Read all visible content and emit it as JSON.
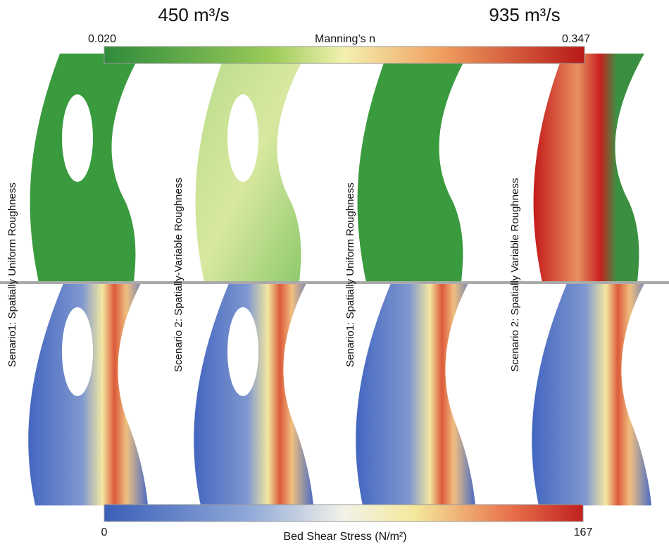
{
  "header": {
    "left_title": "450 m³/s",
    "right_title": "935 m³/s"
  },
  "manning_colorbar": {
    "min_label": "0.020",
    "max_label": "0.347",
    "title": "Manning’s n"
  },
  "shear_colorbar": {
    "min_label": "0",
    "max_label": "167",
    "title": "Bed Shear Stress (N/m²)"
  },
  "panels": [
    {
      "label": "Senario1: Spatially Uniform Roughness"
    },
    {
      "label": "Scenario 2: Spatially-Variable Roughness"
    },
    {
      "label": "Senario1: Spatially Uniform Roughness"
    },
    {
      "label": "Scenario 2: Spatially Variable Roughness"
    }
  ]
}
